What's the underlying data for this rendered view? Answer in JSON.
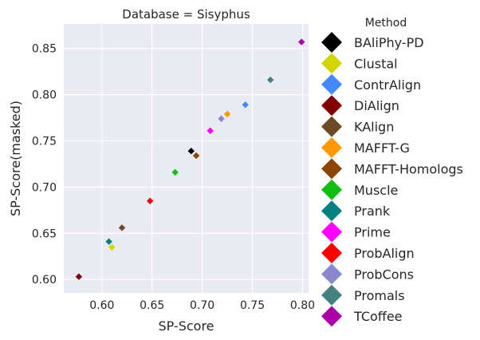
{
  "chart_data": {
    "type": "scatter",
    "title": "Database = Sisyphus",
    "xlabel": "SP-Score",
    "ylabel": "SP-Score(masked)",
    "xlim": [
      0.562,
      0.806
    ],
    "ylim": [
      0.5855,
      0.8765
    ],
    "xticks": [
      0.6,
      0.65,
      0.7,
      0.75,
      0.8
    ],
    "xtick_labels": [
      "0.60",
      "0.65",
      "0.70",
      "0.75",
      "0.80"
    ],
    "yticks": [
      0.6,
      0.65,
      0.7,
      0.75,
      0.8,
      0.85
    ],
    "ytick_labels": [
      "0.60",
      "0.65",
      "0.70",
      "0.75",
      "0.80",
      "0.85"
    ],
    "grid": true,
    "legend": {
      "title": "Method",
      "placement": "outside-right"
    },
    "series": [
      {
        "name": "BAliPhy-PD",
        "color": "#000000",
        "x": 0.689,
        "y": 0.739
      },
      {
        "name": "Clustal",
        "color": "#d4d400",
        "x": 0.61,
        "y": 0.635
      },
      {
        "name": "ContrAlign",
        "color": "#4488ff",
        "x": 0.743,
        "y": 0.789
      },
      {
        "name": "DiAlign",
        "color": "#800000",
        "x": 0.577,
        "y": 0.603
      },
      {
        "name": "KAlign",
        "color": "#6b4a25",
        "x": 0.62,
        "y": 0.656
      },
      {
        "name": "MAFFT-G",
        "color": "#ff9900",
        "x": 0.725,
        "y": 0.779
      },
      {
        "name": "MAFFT-Homologs",
        "color": "#8b4500",
        "x": 0.694,
        "y": 0.734
      },
      {
        "name": "Muscle",
        "color": "#10c010",
        "x": 0.673,
        "y": 0.716
      },
      {
        "name": "Prank",
        "color": "#008080",
        "x": 0.607,
        "y": 0.641
      },
      {
        "name": "Prime",
        "color": "#ff00ff",
        "x": 0.708,
        "y": 0.761
      },
      {
        "name": "ProbAlign",
        "color": "#ff0000",
        "x": 0.648,
        "y": 0.685
      },
      {
        "name": "ProbCons",
        "color": "#8888cc",
        "x": 0.719,
        "y": 0.774
      },
      {
        "name": "Promals",
        "color": "#448080",
        "x": 0.768,
        "y": 0.816
      },
      {
        "name": "TCoffee",
        "color": "#aa00aa",
        "x": 0.799,
        "y": 0.857
      }
    ]
  }
}
